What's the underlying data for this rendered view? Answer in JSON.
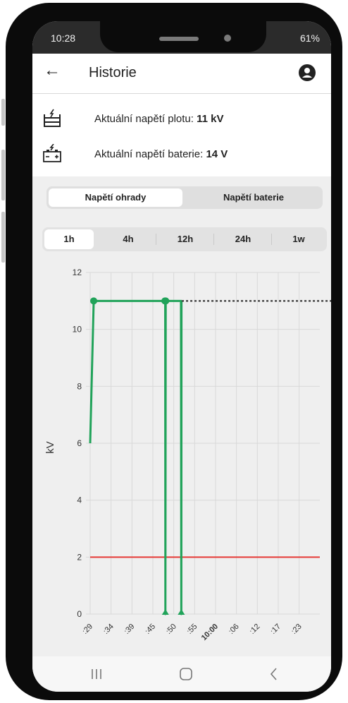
{
  "status_bar": {
    "time": "10:28",
    "right_text": "61%"
  },
  "app_bar": {
    "title": "Historie"
  },
  "info": {
    "fence_label": "Aktuální napětí plotu:",
    "fence_value": "11 kV",
    "battery_label": "Aktuální napětí baterie:",
    "battery_value": "14 V"
  },
  "segment": {
    "options": [
      "Napětí ohrady",
      "Napětí baterie"
    ],
    "selected": 0
  },
  "range_tabs": {
    "options": [
      "1h",
      "4h",
      "12h",
      "24h",
      "1w"
    ],
    "selected": 0
  },
  "colors": {
    "series": "#21a35a",
    "threshold": "#e53935",
    "grid": "#d9d9d9"
  },
  "chart_data": {
    "type": "line",
    "ylabel": "kV",
    "ylim": [
      0,
      12
    ],
    "yticks": [
      "0",
      "2",
      "4",
      "6",
      "8",
      "10",
      "12"
    ],
    "xticks": [
      ":29",
      ":34",
      ":39",
      ":45",
      ":50",
      ":55",
      "10:00",
      ":06",
      ":12",
      ":17",
      ":23"
    ],
    "bold_xtick": "10:00",
    "series": [
      {
        "type": "solid",
        "x": [
          0.0,
          0.22,
          4.65,
          4.67,
          4.68,
          4.7,
          5.65,
          5.67,
          5.68,
          5.7
        ],
        "y": [
          6,
          11,
          11,
          11,
          0,
          11,
          11,
          0,
          11,
          11
        ]
      },
      {
        "type": "dashed",
        "x": [
          5.7,
          18.5
        ],
        "y": [
          11,
          11
        ]
      }
    ],
    "threshold": 2
  },
  "icons": {
    "back": "arrow-left-icon",
    "profile": "user-avatar-icon",
    "fence": "fence-voltage-icon",
    "battery": "battery-icon",
    "nav_recents": "recent-apps-icon",
    "nav_home": "home-icon",
    "nav_back": "back-icon"
  }
}
